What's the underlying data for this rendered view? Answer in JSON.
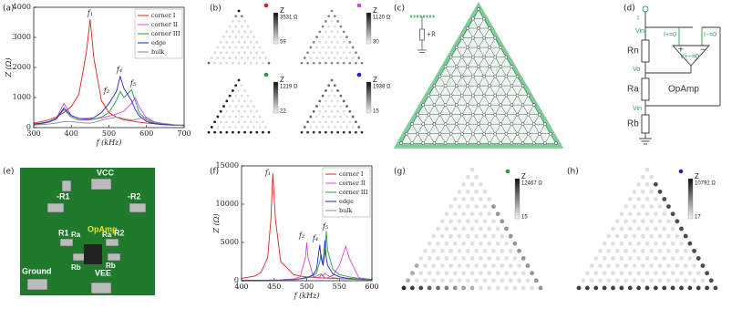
{
  "panel_labels": [
    "(a)",
    "(b)",
    "(c)",
    "(d)",
    "(e)",
    "(f)",
    "(g)",
    "(h)"
  ],
  "chart_data": [
    {
      "type": "line",
      "xlabel": "f (kHz)",
      "ylabel": "Z (Ω)",
      "x": [
        300,
        320,
        340,
        360,
        380,
        400,
        420,
        440,
        450,
        460,
        480,
        500,
        520,
        530,
        540,
        560,
        570,
        580,
        600,
        620,
        640,
        660,
        680,
        700
      ],
      "xlim": [
        300,
        700
      ],
      "xticks": [
        300,
        400,
        500,
        600,
        700
      ],
      "ylim": [
        0,
        4000
      ],
      "yticks": [
        0,
        1000,
        2000,
        3000,
        4000
      ],
      "legend": "upper right",
      "annotations": [
        "f₁",
        "f₂",
        "f₄",
        "f₅"
      ],
      "series": [
        {
          "name": "corner I",
          "color": "#e02020",
          "values": [
            150,
            200,
            260,
            350,
            500,
            700,
            1100,
            2500,
            3600,
            2300,
            900,
            500,
            350,
            300,
            260,
            220,
            200,
            180,
            150,
            130,
            110,
            100,
            90,
            80
          ]
        },
        {
          "name": "corner II",
          "color": "#e040e0",
          "values": [
            100,
            130,
            180,
            300,
            800,
            400,
            300,
            280,
            280,
            290,
            320,
            380,
            450,
            500,
            550,
            800,
            1000,
            700,
            300,
            180,
            130,
            100,
            90,
            80
          ]
        },
        {
          "name": "corner III",
          "color": "#2a9a4a",
          "values": [
            100,
            130,
            180,
            280,
            600,
            350,
            250,
            250,
            260,
            280,
            350,
            500,
            900,
            1200,
            1000,
            1250,
            900,
            500,
            250,
            150,
            110,
            90,
            80,
            70
          ]
        },
        {
          "name": "edge",
          "color": "#2020d0",
          "values": [
            120,
            150,
            200,
            300,
            650,
            400,
            300,
            300,
            310,
            330,
            500,
            800,
            1200,
            1700,
            1300,
            900,
            600,
            400,
            200,
            130,
            100,
            90,
            80,
            70
          ]
        },
        {
          "name": "bulk",
          "color": "#888888",
          "values": [
            80,
            100,
            120,
            150,
            200,
            200,
            170,
            150,
            150,
            170,
            250,
            300,
            350,
            330,
            300,
            250,
            260,
            300,
            350,
            200,
            150,
            120,
            90,
            60
          ]
        }
      ]
    },
    {
      "type": "line",
      "xlabel": "f (kHz)",
      "ylabel": "Z (Ω)",
      "x": [
        400,
        420,
        430,
        440,
        445,
        448,
        452,
        460,
        480,
        490,
        498,
        500,
        502,
        510,
        515,
        520,
        522,
        525,
        528,
        530,
        532,
        540,
        550,
        560,
        565,
        580,
        600
      ],
      "xlim": [
        400,
        600
      ],
      "xticks": [
        400,
        450,
        500,
        550,
        600
      ],
      "ylim": [
        0,
        15000
      ],
      "yticks": [
        0,
        5000,
        10000,
        15000
      ],
      "legend": "upper right",
      "annotations": [
        "f₁",
        "f₂",
        "f₄",
        "f₅"
      ],
      "series": [
        {
          "name": "corner I",
          "color": "#e02020",
          "values": [
            300,
            600,
            1100,
            3000,
            8000,
            14000,
            8000,
            2500,
            800,
            600,
            500,
            500,
            480,
            420,
            400,
            380,
            370,
            360,
            350,
            340,
            330,
            300,
            260,
            230,
            220,
            180,
            150
          ]
        },
        {
          "name": "corner II",
          "color": "#e040e0",
          "values": [
            50,
            60,
            70,
            80,
            90,
            100,
            110,
            120,
            250,
            500,
            3000,
            5000,
            3000,
            600,
            400,
            500,
            800,
            600,
            400,
            350,
            400,
            700,
            2000,
            4500,
            3000,
            400,
            150
          ]
        },
        {
          "name": "corner III",
          "color": "#2a9a4a",
          "values": [
            40,
            50,
            55,
            60,
            62,
            65,
            70,
            80,
            150,
            250,
            400,
            450,
            450,
            700,
            1000,
            2500,
            3500,
            2000,
            3500,
            6500,
            4000,
            1500,
            800,
            600,
            500,
            300,
            150
          ]
        },
        {
          "name": "edge",
          "color": "#2020d0",
          "values": [
            40,
            50,
            55,
            60,
            62,
            65,
            70,
            80,
            150,
            250,
            400,
            450,
            450,
            800,
            1500,
            4700,
            3000,
            2000,
            5300,
            3000,
            2000,
            900,
            500,
            350,
            300,
            200,
            100
          ]
        },
        {
          "name": "bulk",
          "color": "#888888",
          "values": [
            30,
            40,
            45,
            50,
            50,
            55,
            60,
            70,
            120,
            200,
            300,
            350,
            380,
            500,
            600,
            800,
            900,
            700,
            1000,
            800,
            700,
            400,
            300,
            250,
            200,
            150,
            80
          ]
        }
      ]
    }
  ],
  "heatmaps": [
    {
      "z": "Z",
      "max": "3531 Ω",
      "min": "59",
      "color": "#e02020"
    },
    {
      "z": "Z",
      "max": "1120 Ω",
      "min": "30",
      "color": "#e040e0"
    },
    {
      "z": "Z",
      "max": "1219 Ω",
      "min": "22",
      "color": "#2a9a4a"
    },
    {
      "z": "Z",
      "max": "1938 Ω",
      "min": "15",
      "color": "#2020d0"
    },
    {
      "z": "Z",
      "max": "12467 Ω",
      "min": "15",
      "color": "#2a9a4a"
    },
    {
      "z": "Z",
      "max": "10792 Ω",
      "min": "17",
      "color": "#2020d0"
    }
  ],
  "lattice": {
    "resistor": "+R"
  },
  "circuit": {
    "current": "I",
    "v_in_top": "Vin",
    "i_plus": "I+=0",
    "i_minus": "I−=0",
    "v_diff": "V+−=0",
    "plus": "+",
    "minus": "−",
    "r_n": "Rn",
    "v_o": "Vo",
    "opamp": "OpAmp",
    "r_a": "Ra",
    "v_in_bottom": "Vin",
    "r_b": "Rb"
  },
  "photo": {
    "vcc": "VCC",
    "neg_r1": "-R1",
    "neg_r2": "-R2",
    "r1": "R1",
    "ra_left": "Ra",
    "ra_right": "Ra",
    "r2": "R2",
    "opamp": "OpAmp",
    "rb_left": "Rb",
    "rb_right": "Rb",
    "ground": "Ground",
    "vee": "VEE"
  }
}
